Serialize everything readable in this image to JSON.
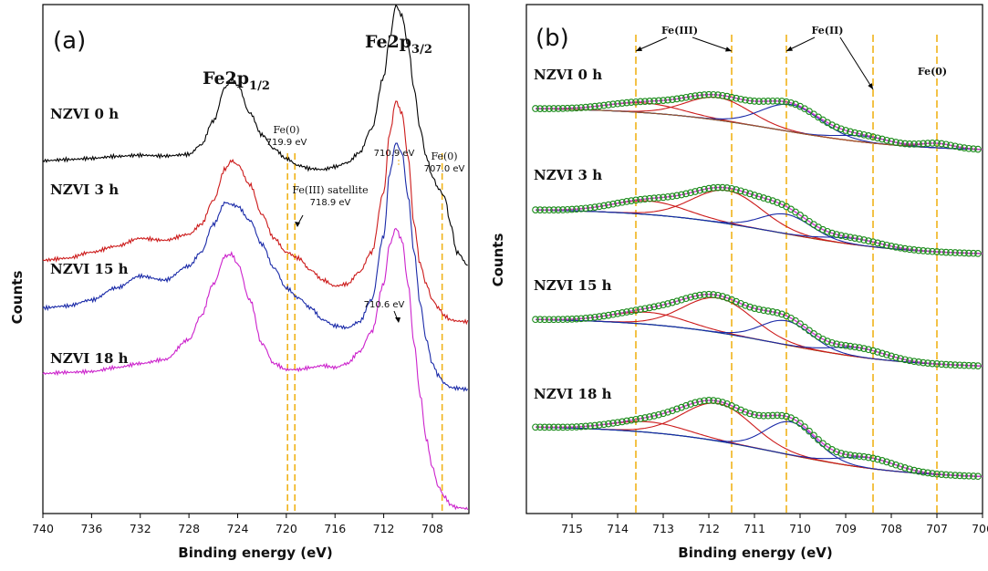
{
  "chart_data": [
    {
      "panel": "(a)",
      "type": "line",
      "xlabel": "Binding energy (eV)",
      "ylabel": "Counts",
      "xlim": [
        740,
        705
      ],
      "x_reversed": true,
      "x_ticks": [
        "740",
        "736",
        "732",
        "728",
        "724",
        "720",
        "716",
        "712",
        "708"
      ],
      "peak_labels": [
        {
          "main": "Fe2p",
          "sub": "1/2"
        },
        {
          "main": "Fe2p",
          "sub": "3/2"
        }
      ],
      "annotations": [
        {
          "lines": [
            "Fe(0)",
            "719.9 eV"
          ],
          "x": 719.9
        },
        {
          "lines": [
            "Fe(III) satellite",
            "718.9 eV"
          ],
          "x": 719.3
        },
        {
          "lines": [
            "710.9 eV"
          ],
          "x": 710.9
        },
        {
          "lines": [
            "Fe(0)",
            "707.0 eV"
          ],
          "x": 707.0
        },
        {
          "lines": [
            "710.6 eV"
          ],
          "x": 710.6
        }
      ],
      "reference_lines_x": [
        719.9,
        719.3,
        707.2
      ],
      "series": [
        {
          "name": "NZVI 0 h",
          "color": "#000000",
          "x": [
            740,
            738,
            736,
            734,
            732,
            730,
            728,
            727,
            726,
            725,
            724.5,
            724,
            723,
            722,
            721,
            720,
            719,
            718,
            717,
            716,
            715,
            714,
            713,
            712,
            711.5,
            711,
            710.5,
            710,
            709.5,
            709,
            708.5,
            708,
            707.5,
            707,
            706.5,
            706,
            705
          ],
          "y": [
            4.1,
            4.13,
            4.16,
            4.21,
            4.24,
            4.22,
            4.26,
            4.5,
            5.1,
            5.95,
            6.15,
            6.0,
            5.3,
            4.75,
            4.4,
            4.15,
            3.98,
            3.9,
            3.88,
            3.95,
            4.05,
            4.3,
            4.9,
            6.2,
            7.2,
            8.0,
            7.75,
            7.0,
            5.9,
            4.9,
            4.2,
            3.7,
            3.4,
            3.2,
            2.5,
            1.8,
            1.45
          ]
        },
        {
          "name": "NZVI 3 h",
          "color": "#cc1a1a",
          "x": [
            740,
            738,
            736,
            734,
            732,
            730,
            728,
            727,
            726,
            725,
            724.5,
            724,
            723,
            722,
            721,
            720,
            719,
            718,
            717,
            716,
            715,
            714,
            713,
            712,
            711.5,
            711,
            710.5,
            710,
            709.5,
            709,
            708.5,
            708,
            707.5,
            707,
            706.5,
            706,
            705
          ],
          "y": [
            1.6,
            1.65,
            1.8,
            1.95,
            2.15,
            2.1,
            2.25,
            2.5,
            3.1,
            3.9,
            4.1,
            4.0,
            3.5,
            2.75,
            2.15,
            1.8,
            1.65,
            1.35,
            1.1,
            0.95,
            1.0,
            1.3,
            1.8,
            3.3,
            4.8,
            5.6,
            5.3,
            4.2,
            2.5,
            1.5,
            1.0,
            0.6,
            0.4,
            0.2,
            0.1,
            0.07,
            0.05
          ]
        },
        {
          "name": "NZVI 15 h",
          "color": "#1a2aa8",
          "x": [
            740,
            738,
            736,
            734,
            732,
            730,
            728,
            727,
            726,
            725,
            724.5,
            724,
            723,
            722,
            721,
            720,
            719,
            718,
            717,
            716,
            715,
            714,
            713,
            712,
            711.5,
            711,
            710.5,
            710,
            709.5,
            709,
            708.5,
            708,
            707.5,
            707,
            706.5,
            706,
            705
          ],
          "y": [
            0.4,
            0.45,
            0.6,
            0.9,
            1.2,
            1.1,
            1.45,
            1.8,
            2.5,
            3.05,
            3.0,
            2.95,
            2.6,
            2.0,
            1.4,
            0.9,
            0.65,
            0.4,
            0.1,
            -0.05,
            -0.1,
            0.05,
            0.6,
            2.2,
            3.8,
            4.55,
            4.3,
            3.2,
            1.8,
            0.5,
            -0.4,
            -1.0,
            -1.3,
            -1.5,
            -1.6,
            -1.62,
            -1.65
          ]
        },
        {
          "name": "NZVI 18 h",
          "color": "#cc22cc",
          "x": [
            740,
            738,
            736,
            734,
            732,
            730,
            728,
            727,
            726,
            725,
            724.5,
            724,
            723,
            722,
            721,
            720,
            719,
            718,
            717,
            716,
            715,
            714,
            713,
            712,
            711.5,
            711,
            710.5,
            710,
            709.5,
            709,
            708.5,
            708,
            707.5,
            707,
            706.5,
            706,
            705
          ],
          "y": [
            -1.25,
            -1.22,
            -1.2,
            -1.1,
            -1.0,
            -0.9,
            -0.4,
            0.2,
            1.0,
            1.7,
            1.75,
            1.5,
            0.6,
            -0.5,
            -1.0,
            -1.15,
            -1.15,
            -1.1,
            -1.05,
            -1.1,
            -1.0,
            -0.7,
            -0.2,
            1.0,
            2.0,
            2.4,
            2.1,
            1.0,
            -0.5,
            -1.8,
            -2.9,
            -3.6,
            -4.1,
            -4.35,
            -4.55,
            -4.62,
            -4.65
          ]
        }
      ]
    },
    {
      "panel": "(b)",
      "type": "line",
      "xlabel": "Binding energy (eV)",
      "ylabel": "Counts",
      "xlim": [
        716,
        706
      ],
      "x_reversed": true,
      "x_ticks": [
        "715",
        "714",
        "713",
        "712",
        "711",
        "710",
        "709",
        "708",
        "707",
        "706"
      ],
      "peak_annotations": [
        {
          "label": "Fe(III)",
          "arrows_to_x": [
            713.6,
            711.5
          ]
        },
        {
          "label": "Fe(II)",
          "arrows_to_x": [
            710.3,
            708.4
          ]
        },
        {
          "label": "Fe(0)",
          "arrows_to_x": []
        }
      ],
      "reference_lines_x": [
        713.6,
        711.5,
        710.3,
        708.4,
        707.0
      ],
      "components_description": "fitted Gaussian components (red, blue), background (green), envelope (magenta), data (green circles)",
      "samples": [
        {
          "name": "NZVI 0 h",
          "bg_start": 0.0,
          "bg_end": -1.45,
          "envelope_peak": 1.55,
          "red_peaks": [
            {
              "center": 713.4,
              "height": 0.32,
              "width": 0.8
            },
            {
              "center": 711.8,
              "height": 0.75,
              "width": 0.7
            }
          ],
          "blue_peaks": [
            {
              "center": 710.2,
              "height": 0.9,
              "width": 0.65
            },
            {
              "center": 708.6,
              "height": 0.2,
              "width": 0.55
            }
          ],
          "brown_peaks": [
            {
              "center": 707.0,
              "height": 0.15,
              "width": 0.35
            }
          ]
        },
        {
          "name": "NZVI 3 h",
          "bg_start": 0.0,
          "bg_end": -1.55,
          "envelope_peak": 1.55,
          "red_peaks": [
            {
              "center": 713.3,
              "height": 0.45,
              "width": 0.8
            },
            {
              "center": 711.6,
              "height": 1.1,
              "width": 0.75
            }
          ],
          "blue_peaks": [
            {
              "center": 710.3,
              "height": 0.65,
              "width": 0.55
            },
            {
              "center": 708.8,
              "height": 0.2,
              "width": 0.6
            }
          ],
          "brown_peaks": []
        },
        {
          "name": "NZVI 15 h",
          "bg_start": 0.0,
          "bg_end": -1.65,
          "envelope_peak": 1.55,
          "red_peaks": [
            {
              "center": 713.3,
              "height": 0.4,
              "width": 0.8
            },
            {
              "center": 711.8,
              "height": 1.15,
              "width": 0.75
            }
          ],
          "blue_peaks": [
            {
              "center": 710.3,
              "height": 0.8,
              "width": 0.55
            },
            {
              "center": 708.7,
              "height": 0.3,
              "width": 0.6
            }
          ],
          "brown_peaks": []
        },
        {
          "name": "NZVI 18 h",
          "bg_start": 0.0,
          "bg_end": -1.75,
          "envelope_peak": 1.55,
          "red_peaks": [
            {
              "center": 713.3,
              "height": 0.35,
              "width": 0.8
            },
            {
              "center": 711.8,
              "height": 1.25,
              "width": 0.75
            }
          ],
          "blue_peaks": [
            {
              "center": 710.2,
              "height": 1.1,
              "width": 0.55
            },
            {
              "center": 708.5,
              "height": 0.35,
              "width": 0.6
            }
          ],
          "brown_peaks": []
        }
      ]
    }
  ]
}
